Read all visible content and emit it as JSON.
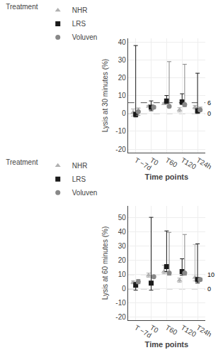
{
  "chart_data": [
    {
      "type": "scatter",
      "xlabel": "Time points",
      "ylabel": "Lysis at 30 minutes (%)",
      "categories": [
        "T −7d",
        "T0",
        "T60",
        "T120",
        "T24h"
      ],
      "ylim": [
        -22,
        42
      ],
      "yticks": [
        -20,
        -10,
        0,
        10,
        20,
        30,
        40
      ],
      "grid": true,
      "legend": "top",
      "legend_title": "Treatment",
      "hlines": [
        {
          "value": 0,
          "label": "0",
          "color": "#555555",
          "line_style": "dashed"
        },
        {
          "value": 6,
          "label": "6",
          "color": "#555555",
          "line_style": "dashed"
        }
      ],
      "series": [
        {
          "name": "NHR",
          "color": "#b0b0b0",
          "marker": "triangle",
          "values": [
            0.5,
            4.0,
            5.5,
            2.0,
            3.5
          ],
          "error_low": [
            2.0,
            0.5,
            0.5,
            1.2,
            1.0
          ],
          "error_high": [
            2.0,
            0.5,
            0.5,
            1.2,
            1.0
          ]
        },
        {
          "name": "LRS",
          "color": "#1a1a1a",
          "marker": "square",
          "values": [
            -0.5,
            3.5,
            7.0,
            6.5,
            1.5
          ],
          "error_low": [
            1.5,
            2.0,
            1.5,
            1.5,
            1.5
          ],
          "error_high": [
            38.5,
            3.5,
            3.0,
            4.5,
            21.0
          ]
        },
        {
          "name": "Voluven",
          "color": "#888888",
          "marker": "circle",
          "values": [
            1.0,
            3.5,
            4.0,
            5.0,
            2.0
          ],
          "error_low": [
            2.0,
            0.8,
            0.5,
            1.2,
            0.8
          ],
          "error_high": [
            2.0,
            0.8,
            25.0,
            22.5,
            1.5
          ]
        }
      ]
    },
    {
      "type": "scatter",
      "xlabel": "Time points",
      "ylabel": "Lysis at 60 minutes (%)",
      "categories": [
        "T −7d",
        "T0",
        "T60",
        "T120",
        "T24h"
      ],
      "ylim": [
        -22,
        58
      ],
      "yticks": [
        -20,
        -10,
        0,
        10,
        20,
        30,
        40,
        50
      ],
      "grid": true,
      "legend": "top",
      "legend_title": "Treatment",
      "hlines": [
        {
          "value": 0,
          "label": "0",
          "color": "#555555",
          "line_style": "dashed"
        },
        {
          "value": 10,
          "label": "10",
          "color": "#555555",
          "line_style": "dashed"
        }
      ],
      "series": [
        {
          "name": "NHR",
          "color": "#b0b0b0",
          "marker": "triangle",
          "values": [
            4.5,
            9.5,
            12.0,
            6.0,
            8.0
          ],
          "error_low": [
            1.0,
            1.5,
            1.5,
            1.5,
            2.5
          ],
          "error_high": [
            1.0,
            1.5,
            4.5,
            1.5,
            23.0
          ]
        },
        {
          "name": "LRS",
          "color": "#1a1a1a",
          "marker": "square",
          "values": [
            2.5,
            4.0,
            15.5,
            12.0,
            6.5
          ],
          "error_low": [
            3.5,
            5.0,
            3.5,
            2.5,
            2.5
          ],
          "error_high": [
            2.0,
            46.0,
            25.0,
            9.0,
            25.0
          ]
        },
        {
          "name": "Voluven",
          "color": "#888888",
          "marker": "circle",
          "values": [
            5.0,
            8.5,
            11.0,
            11.0,
            6.5
          ],
          "error_low": [
            1.5,
            0.5,
            1.5,
            1.5,
            1.0
          ],
          "error_high": [
            1.5,
            0.5,
            28.5,
            27.0,
            1.0
          ]
        }
      ]
    }
  ]
}
